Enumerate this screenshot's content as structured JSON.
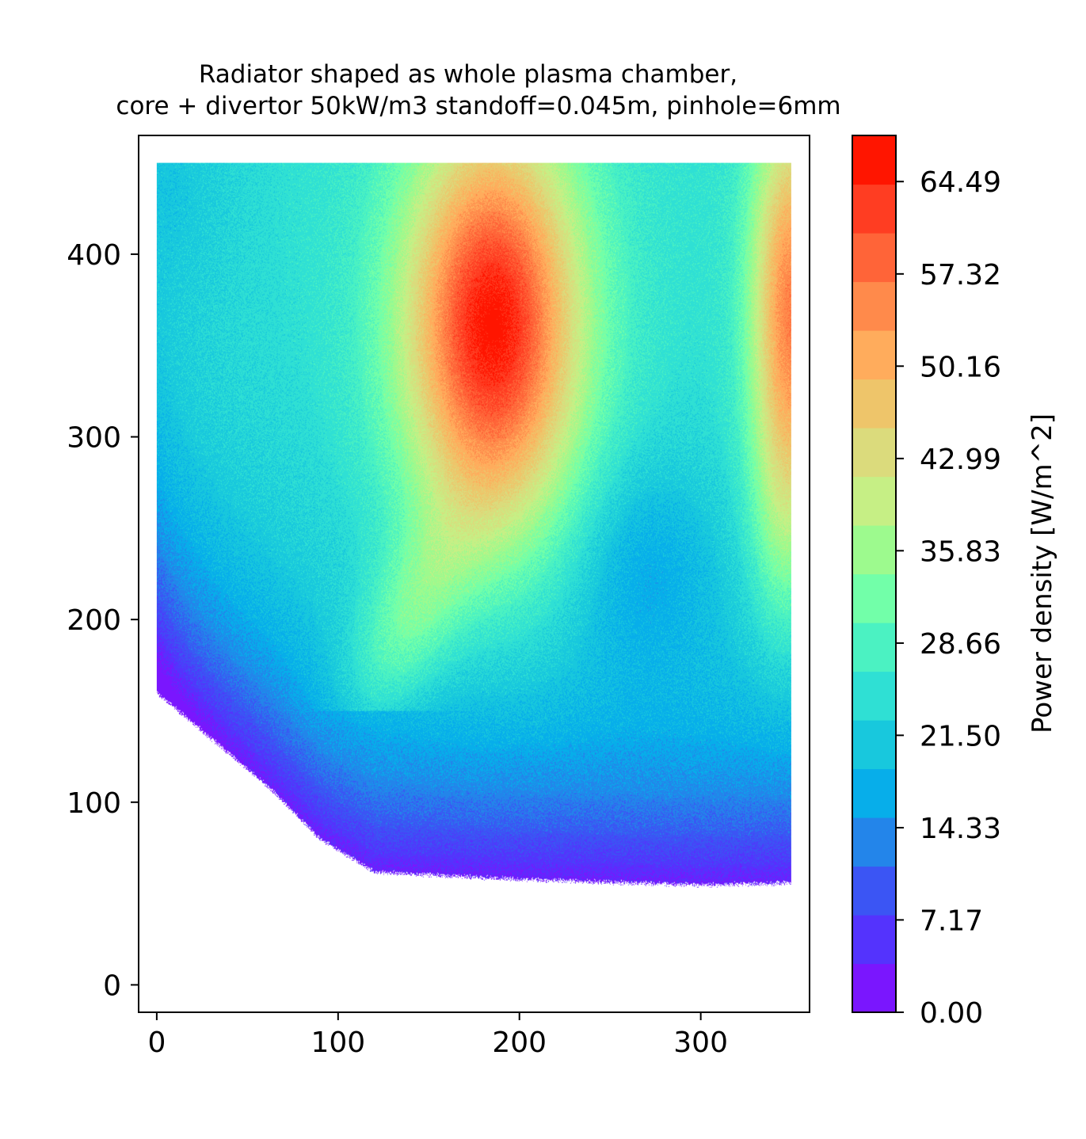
{
  "chart_data": {
    "type": "heatmap",
    "title_line1": "Radiator shaped as whole plasma chamber,",
    "title_line2": "core + divertor 50kW/m3 standoff=0.045m, pinhole=6mm",
    "xlabel": "",
    "ylabel": "",
    "xlim": [
      -10,
      360
    ],
    "ylim": [
      -15,
      465
    ],
    "xticks": [
      "0",
      "100",
      "200",
      "300"
    ],
    "xtick_values": [
      0,
      100,
      200,
      300
    ],
    "yticks": [
      "0",
      "100",
      "200",
      "300",
      "400"
    ],
    "ytick_values": [
      0,
      100,
      200,
      300,
      400
    ],
    "colorbar": {
      "label": "Power density [W/m^2]",
      "min": 0.0,
      "max": 68.07,
      "tick_labels": [
        "0.00",
        "7.17",
        "14.33",
        "21.50",
        "28.66",
        "35.83",
        "42.99",
        "50.16",
        "57.32",
        "64.49"
      ],
      "tick_values": [
        0.0,
        7.17,
        14.33,
        21.5,
        28.66,
        35.83,
        42.99,
        50.16,
        57.32,
        64.49
      ],
      "level_colors": [
        "#7a16fe",
        "#5433fd",
        "#3b55f4",
        "#2385ea",
        "#07aeea",
        "#18c8dd",
        "#2fe0d4",
        "#4bf2c2",
        "#72ffa9",
        "#9dfa8e",
        "#c6ef85",
        "#dbdb7c",
        "#eec56a",
        "#ffac5c",
        "#ff8a4b",
        "#ff6438",
        "#ff3d22",
        "#ff1500"
      ]
    },
    "field": {
      "x_range": [
        0,
        350
      ],
      "y_top": 450,
      "boundary": [
        [
          0,
          160
        ],
        [
          30,
          135
        ],
        [
          60,
          110
        ],
        [
          90,
          80
        ],
        [
          120,
          62
        ],
        [
          200,
          58
        ],
        [
          300,
          55
        ],
        [
          350,
          56
        ]
      ],
      "features": [
        {
          "kind": "hotspot",
          "x": 185,
          "y": 360,
          "peak": 66,
          "sigma_x": 48,
          "sigma_y": 110
        },
        {
          "kind": "hotspot",
          "x": 350,
          "y": 370,
          "peak": 55,
          "sigma_x": 22,
          "sigma_y": 110
        },
        {
          "kind": "arm",
          "x": 140,
          "y": 190,
          "peak": 32
        },
        {
          "kind": "right-lobe",
          "x": 340,
          "y": 240,
          "peak": 30
        }
      ]
    }
  }
}
